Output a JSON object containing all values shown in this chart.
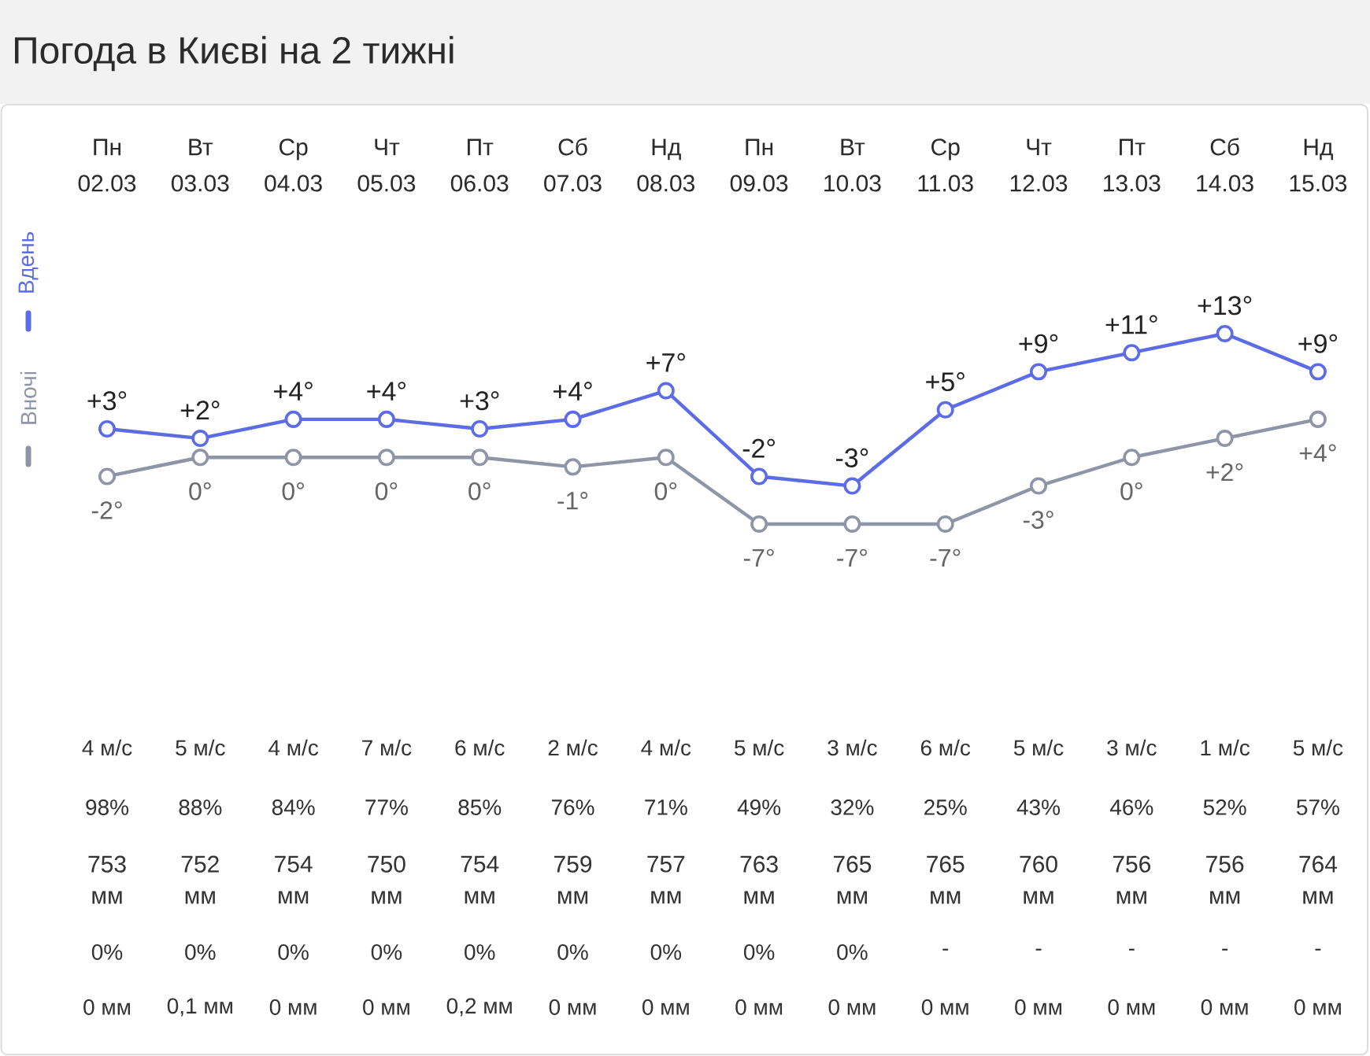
{
  "chart_data": {
    "type": "line",
    "title": "Погода в Києві на 2 тижні",
    "categories": [
      "Пн 02.03",
      "Вт 03.03",
      "Ср 04.03",
      "Чт 05.03",
      "Пт 06.03",
      "Сб 07.03",
      "Нд 08.03",
      "Пн 09.03",
      "Вт 10.03",
      "Ср 11.03",
      "Чт 12.03",
      "Пт 13.03",
      "Сб 14.03",
      "Нд 15.03"
    ],
    "series": [
      {
        "name": "Вдень",
        "color": "#5c6be6",
        "values": [
          3,
          2,
          4,
          4,
          3,
          4,
          7,
          -2,
          -3,
          5,
          9,
          11,
          13,
          9
        ],
        "value_labels": [
          "+3°",
          "+2°",
          "+4°",
          "+4°",
          "+3°",
          "+4°",
          "+7°",
          "-2°",
          "-3°",
          "+5°",
          "+9°",
          "+11°",
          "+13°",
          "+9°"
        ]
      },
      {
        "name": "Вночі",
        "color": "#8e95a6",
        "values": [
          -2,
          0,
          0,
          0,
          0,
          -1,
          0,
          -7,
          -7,
          -7,
          -3,
          0,
          2,
          4
        ],
        "value_labels": [
          "-2°",
          "0°",
          "0°",
          "0°",
          "0°",
          "-1°",
          "0°",
          "-7°",
          "-7°",
          "-7°",
          "-3°",
          "0°",
          "+2°",
          "+4°"
        ]
      }
    ],
    "marker": "circle",
    "legend": "left",
    "tick_labels": "x",
    "annotations": [
      "4 м/с",
      "5 м/с",
      "4 м/с",
      "7 м/с",
      "6 м/с",
      "2 м/с",
      "4 м/с",
      "5 м/с",
      "3 м/с",
      "6 м/с",
      "5 м/с",
      "3 м/с",
      "1 м/с",
      "5 м/с",
      "98%",
      "88%",
      "84%",
      "77%",
      "85%",
      "76%",
      "71%",
      "49%",
      "32%",
      "25%",
      "43%",
      "46%",
      "52%",
      "57%",
      "753 мм",
      "752 мм",
      "754 мм",
      "750 мм",
      "754 мм",
      "759 мм",
      "757 мм",
      "763 мм",
      "765 мм",
      "765 мм",
      "760 мм",
      "756 мм",
      "756 мм",
      "764 мм",
      "0%",
      "0%",
      "0%",
      "0%",
      "0%",
      "0%",
      "0%",
      "0%",
      "0%",
      "-",
      "-",
      "-",
      "-",
      "-",
      "0 мм",
      "0,1 мм",
      "0 мм",
      "0 мм",
      "0,2 мм",
      "0 мм",
      "0 мм",
      "0 мм",
      "0 мм",
      "0 мм",
      "0 мм",
      "0 мм",
      "0 мм",
      "0 мм"
    ]
  }
}
